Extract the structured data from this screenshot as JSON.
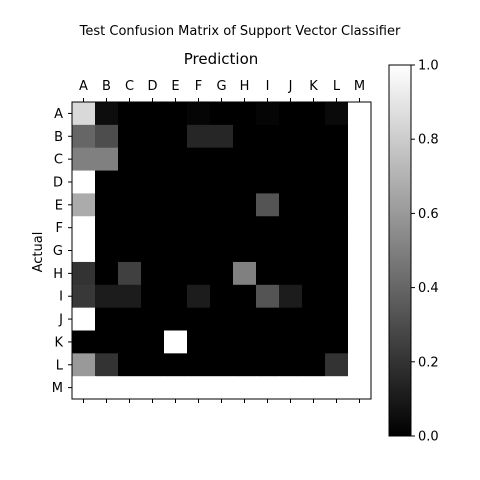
{
  "chart_data": {
    "type": "heatmap",
    "title": "Test Confusion Matrix of Support Vector Classifier",
    "xlabel": "Prediction",
    "ylabel": "Actual",
    "x_categories": [
      "A",
      "B",
      "C",
      "D",
      "E",
      "F",
      "G",
      "H",
      "I",
      "J",
      "K",
      "L",
      "M"
    ],
    "y_categories": [
      "A",
      "B",
      "C",
      "D",
      "E",
      "F",
      "G",
      "H",
      "I",
      "J",
      "K",
      "L",
      "M"
    ],
    "values": [
      [
        0.85,
        0.05,
        0,
        0,
        0,
        0.02,
        0,
        0,
        0.02,
        0,
        0,
        0.04,
        1.0
      ],
      [
        0.4,
        0.3,
        0,
        0,
        0,
        0.15,
        0.15,
        0,
        0,
        0,
        0,
        0,
        1.0
      ],
      [
        0.5,
        0.5,
        0,
        0,
        0,
        0,
        0,
        0,
        0,
        0,
        0,
        0,
        1.0
      ],
      [
        1.0,
        0,
        0,
        0,
        0,
        0,
        0,
        0,
        0,
        0,
        0,
        0,
        1.0
      ],
      [
        0.67,
        0,
        0,
        0,
        0,
        0,
        0,
        0,
        0.33,
        0,
        0,
        0,
        1.0
      ],
      [
        1.0,
        0,
        0,
        0,
        0,
        0,
        0,
        0,
        0,
        0,
        0,
        0,
        1.0
      ],
      [
        1.0,
        0,
        0,
        0,
        0,
        0,
        0,
        0,
        0,
        0,
        0,
        0,
        1.0
      ],
      [
        0.2,
        0,
        0.25,
        0,
        0,
        0,
        0,
        0.5,
        0,
        0,
        0,
        0,
        1.0
      ],
      [
        0.22,
        0.11,
        0.11,
        0,
        0,
        0.11,
        0,
        0,
        0.33,
        0.11,
        0,
        0,
        1.0
      ],
      [
        1.0,
        0,
        0,
        0,
        0,
        0,
        0,
        0,
        0,
        0,
        0,
        0,
        1.0
      ],
      [
        0,
        0,
        0,
        0,
        1.0,
        0,
        0,
        0,
        0,
        0,
        0,
        0,
        1.0
      ],
      [
        0.6,
        0.2,
        0,
        0,
        0,
        0,
        0,
        0,
        0,
        0,
        0,
        0.2,
        1.0
      ],
      [
        1.0,
        1.0,
        1.0,
        1.0,
        1.0,
        1.0,
        1.0,
        1.0,
        1.0,
        1.0,
        1.0,
        1.0,
        1.0
      ]
    ],
    "colorbar": {
      "range": [
        0.0,
        1.0
      ],
      "ticks": [
        "0.0",
        "0.2",
        "0.4",
        "0.6",
        "0.8",
        "1.0"
      ],
      "colormap": "gray"
    }
  }
}
